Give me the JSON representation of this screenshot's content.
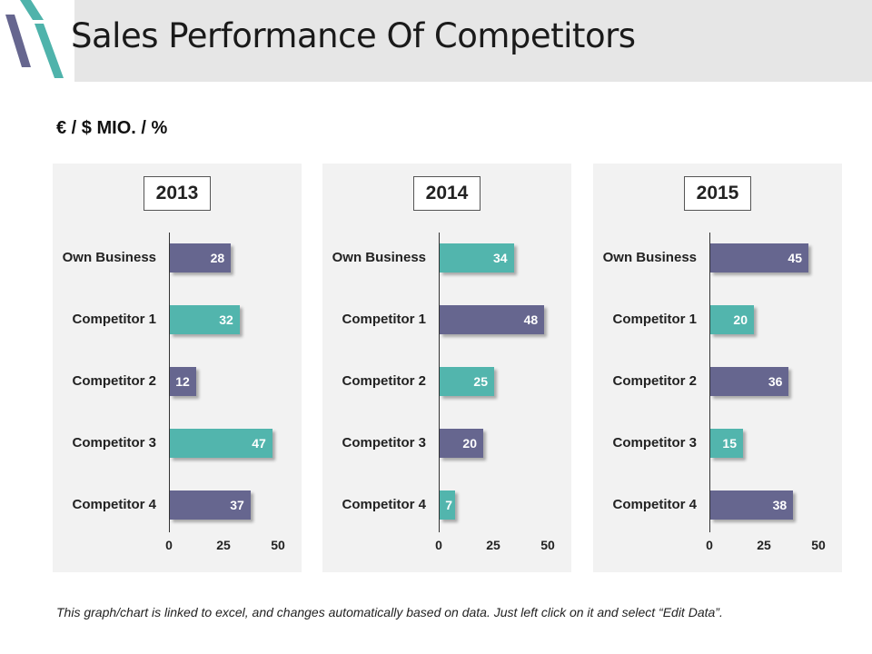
{
  "header": {
    "title": "Sales Performance Of Competitors",
    "subtitle": "€ / $ MIO. / %"
  },
  "colors": {
    "purple": "#66668f",
    "teal": "#52b5ad",
    "panel": "#f2f2f2",
    "title_bar": "#e6e6e6",
    "deco_teal": "#4fb3ab",
    "deco_purple": "#66668f"
  },
  "chart_data": [
    {
      "type": "bar",
      "orientation": "horizontal",
      "title": "2013",
      "categories": [
        "Own Business",
        "Competitor 1",
        "Competitor 2",
        "Competitor 3",
        "Competitor 4"
      ],
      "values": [
        28,
        32,
        12,
        47,
        37
      ],
      "bar_colors": [
        "purple",
        "teal",
        "purple",
        "teal",
        "purple"
      ],
      "xlim": [
        0,
        50
      ],
      "ticks": [
        "0",
        "25",
        "50"
      ]
    },
    {
      "type": "bar",
      "orientation": "horizontal",
      "title": "2014",
      "categories": [
        "Own Business",
        "Competitor 1",
        "Competitor 2",
        "Competitor 3",
        "Competitor 4"
      ],
      "values": [
        34,
        48,
        25,
        20,
        7
      ],
      "bar_colors": [
        "teal",
        "purple",
        "teal",
        "purple",
        "teal"
      ],
      "xlim": [
        0,
        50
      ],
      "ticks": [
        "0",
        "25",
        "50"
      ]
    },
    {
      "type": "bar",
      "orientation": "horizontal",
      "title": "2015",
      "categories": [
        "Own Business",
        "Competitor 1",
        "Competitor 2",
        "Competitor 3",
        "Competitor 4"
      ],
      "values": [
        45,
        20,
        36,
        15,
        38
      ],
      "bar_colors": [
        "purple",
        "teal",
        "purple",
        "teal",
        "purple"
      ],
      "xlim": [
        0,
        50
      ],
      "ticks": [
        "0",
        "25",
        "50"
      ]
    }
  ],
  "footnote": "This graph/chart is linked to excel, and changes automatically based on data. Just left click on it and select “Edit Data”."
}
